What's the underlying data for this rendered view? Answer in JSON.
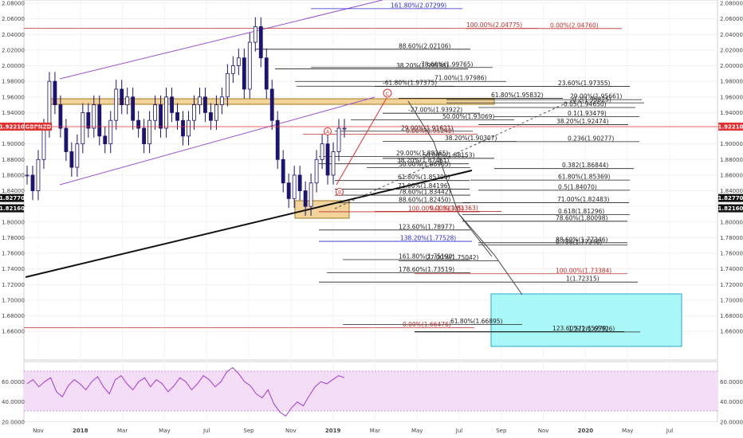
{
  "colors": {
    "candle": "#1b1470",
    "fib_dark": "#222222",
    "fib_red": "#c0302c",
    "fib_blue": "#2a2ad0",
    "channel": "#9b4fd1",
    "price_tag": "#e03030",
    "level_tag": "#111111",
    "target_box": "#aaf7f7",
    "zone_box": "#f2d39a",
    "rsi_band": "#f3ddf7",
    "rsi_line": "#a23bd2"
  },
  "header": {
    "symbol": "GBPNZD",
    "last_price": "1.92210"
  },
  "price_tags_left": [
    {
      "text": "1.92210",
      "value": 1.9221,
      "kind": "price"
    },
    {
      "text": "GBPNZD",
      "value": 1.9221,
      "kind": "symbol"
    },
    {
      "text": "1.82770",
      "value": 1.8277,
      "kind": "level"
    },
    {
      "text": "1.82160",
      "value": 1.8216,
      "kind": "level"
    }
  ],
  "price_tags_right": [
    {
      "text": "1.92210",
      "value": 1.9221,
      "kind": "price"
    },
    {
      "text": "1.82770",
      "value": 1.8277,
      "kind": "level"
    },
    {
      "text": "1.82160",
      "value": 1.8216,
      "kind": "level"
    }
  ],
  "chart_data": {
    "type": "line",
    "title": "",
    "ylim": [
      1.64,
      2.08
    ],
    "y_ticks": [
      "2.08000",
      "2.06000",
      "2.04000",
      "2.02000",
      "2.00000",
      "1.98000",
      "1.96000",
      "1.94000",
      "1.92000",
      "1.90000",
      "1.88000",
      "1.86000",
      "1.84000",
      "1.82000",
      "1.80000",
      "1.78000",
      "1.76000",
      "1.74000",
      "1.72000",
      "1.70000",
      "1.68000",
      "1.66000"
    ],
    "x_ticks": [
      "Nov",
      "2018",
      "Mar",
      "May",
      "Jul",
      "Sep",
      "Nov",
      "2019",
      "Mar",
      "May",
      "Jul",
      "Sep",
      "Nov",
      "2020",
      "May",
      "Jul"
    ],
    "series": [
      {
        "values": [
          1.86,
          1.84,
          1.88,
          1.92,
          1.98,
          1.95,
          1.92,
          1.89,
          1.87,
          1.9,
          1.94,
          1.92,
          1.95,
          1.91,
          1.9,
          1.93,
          1.97,
          1.95,
          1.96,
          1.93,
          1.92,
          1.9,
          1.93,
          1.95,
          1.92,
          1.96,
          1.94,
          1.93,
          1.91,
          1.93,
          1.95,
          1.96,
          1.94,
          1.93,
          1.95,
          1.96,
          1.99,
          2.0,
          2.01,
          1.97,
          2.03,
          2.05,
          2.01,
          1.97,
          1.93,
          1.88,
          1.85,
          1.83,
          1.86,
          1.84,
          1.82,
          1.85,
          1.88,
          1.9,
          1.86,
          1.89,
          1.92,
          1.92
        ]
      }
    ],
    "fib_labels": [
      {
        "text": "161.80%(2.07299)",
        "value": 2.073,
        "color": "blue"
      },
      {
        "text": "100.00%(2.04775)",
        "value": 2.0478,
        "color": "red"
      },
      {
        "text": "0.00%(2.04760)",
        "value": 2.0476,
        "color": "red"
      },
      {
        "text": "88.60%(2.02106)",
        "value": 2.0211,
        "color": "dark"
      },
      {
        "text": "38.20%(1.99598)",
        "value": 1.996,
        "color": "dark"
      },
      {
        "text": "78.60%(1.99765)",
        "value": 1.9977,
        "color": "dark"
      },
      {
        "text": "71.00%(1.97986)",
        "value": 1.9799,
        "color": "dark"
      },
      {
        "text": "-61.80%(1.97375)",
        "value": 1.9738,
        "color": "dark"
      },
      {
        "text": "23.60%(1.97355)",
        "value": 1.9736,
        "color": "dark"
      },
      {
        "text": "61.80%(1.95832)",
        "value": 1.9583,
        "color": "dark"
      },
      {
        "text": "29.00%(1.95661)",
        "value": 1.9566,
        "color": "dark"
      },
      {
        "text": "0.2(1.95825)",
        "value": 1.9525,
        "color": "dark"
      },
      {
        "text": "-27.00%(1.93922)",
        "value": 1.9392,
        "color": "dark"
      },
      {
        "text": "0.05(1.94650)",
        "value": 1.9465,
        "color": "dark"
      },
      {
        "text": "50.00%(1.93069)",
        "value": 1.9307,
        "color": "dark"
      },
      {
        "text": "0.1(1.93479)",
        "value": 1.9348,
        "color": "dark"
      },
      {
        "text": "38.20%(1.92474)",
        "value": 1.9247,
        "color": "dark"
      },
      {
        "text": "29.00%(1.91621)",
        "value": 1.9162,
        "color": "dark"
      },
      {
        "text": "0.00%(1.91242)",
        "value": 1.9124,
        "color": "red"
      },
      {
        "text": "38.20%(1.90307)",
        "value": 1.9031,
        "color": "dark"
      },
      {
        "text": "0.236(1.90277)",
        "value": 1.9028,
        "color": "dark"
      },
      {
        "text": "29.00%(1.88365)",
        "value": 1.8837,
        "color": "dark"
      },
      {
        "text": "50.00%(1.88153)",
        "value": 1.8815,
        "color": "dark"
      },
      {
        "text": "38.20%(1.87451)",
        "value": 1.8745,
        "color": "dark"
      },
      {
        "text": "50.00%(1.86965)",
        "value": 1.8697,
        "color": "dark"
      },
      {
        "text": "0.382(1.86844)",
        "value": 1.8684,
        "color": "dark"
      },
      {
        "text": "61.80%(1.85309)",
        "value": 1.8531,
        "color": "dark"
      },
      {
        "text": "61.80%(1.85369)",
        "value": 1.8537,
        "color": "dark"
      },
      {
        "text": "71.00%(1.84196)",
        "value": 1.842,
        "color": "dark"
      },
      {
        "text": "0.5(1.84070)",
        "value": 1.8407,
        "color": "dark"
      },
      {
        "text": "78.60%(1.83442)",
        "value": 1.8344,
        "color": "dark"
      },
      {
        "text": "88.60%(1.82450)",
        "value": 1.8245,
        "color": "dark"
      },
      {
        "text": "71.00%(1.82483)",
        "value": 1.8248,
        "color": "dark"
      },
      {
        "text": "100.00%(1.81305)",
        "value": 1.8131,
        "color": "red"
      },
      {
        "text": "0.00%(1.81363)",
        "value": 1.8136,
        "color": "red"
      },
      {
        "text": "0.618(1.81296)",
        "value": 1.8095,
        "color": "dark"
      },
      {
        "text": "78.60%(1.80098)",
        "value": 1.801,
        "color": "dark"
      },
      {
        "text": "123.60%(1.78977)",
        "value": 1.7898,
        "color": "dark"
      },
      {
        "text": "138.20%(1.77528)",
        "value": 1.7753,
        "color": "blue"
      },
      {
        "text": "88.60%(1.77346)",
        "value": 1.7735,
        "color": "dark"
      },
      {
        "text": "0.786(1.77346)",
        "value": 1.7705,
        "color": "dark"
      },
      {
        "text": "161.80%(1.75190)",
        "value": 1.7519,
        "color": "dark"
      },
      {
        "text": "27.00%(1.75042)",
        "value": 1.7504,
        "color": "dark"
      },
      {
        "text": "178.60%(1.73519)",
        "value": 1.7352,
        "color": "dark"
      },
      {
        "text": "100.00%(1.73384)",
        "value": 1.7338,
        "color": "red"
      },
      {
        "text": "1(1.72315)",
        "value": 1.7232,
        "color": "dark"
      },
      {
        "text": "61.80%(1.66895)",
        "value": 1.669,
        "color": "dark"
      },
      {
        "text": "0.00%(1.66476)",
        "value": 1.6648,
        "color": "red"
      },
      {
        "text": "123.60%(1.65979)",
        "value": 1.6598,
        "color": "dark"
      },
      {
        "text": "1.272(1.65926)",
        "value": 1.6593,
        "color": "dark"
      }
    ],
    "wave_labels": [
      "A",
      "B",
      "C"
    ]
  },
  "rsi": {
    "ylim": [
      20,
      80
    ],
    "band": [
      30,
      70
    ],
    "y_ticks": [
      "60.0000",
      "40.0000",
      "20.0000"
    ],
    "values": [
      58,
      62,
      55,
      60,
      64,
      50,
      45,
      56,
      62,
      58,
      52,
      60,
      65,
      55,
      48,
      62,
      66,
      58,
      52,
      60,
      64,
      55,
      62,
      58,
      50,
      56,
      64,
      60,
      52,
      58,
      66,
      62,
      55,
      60,
      70,
      74,
      68,
      60,
      56,
      48,
      44,
      52,
      38,
      30,
      26,
      34,
      40,
      36,
      46,
      55,
      60,
      58,
      62,
      66,
      64
    ]
  }
}
